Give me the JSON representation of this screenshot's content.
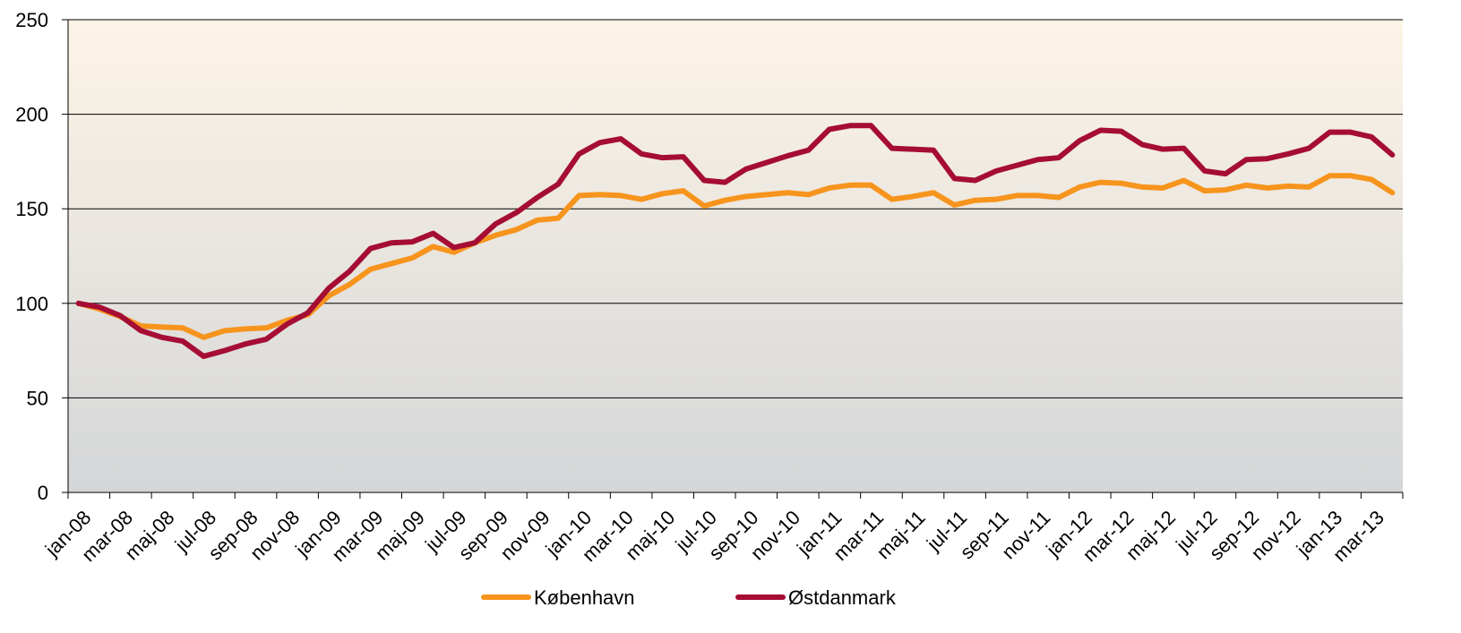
{
  "chart_data": {
    "type": "line",
    "categories": [
      "jan-08",
      null,
      "mar-08",
      null,
      "maj-08",
      null,
      "jul-08",
      null,
      "sep-08",
      null,
      "nov-08",
      null,
      "jan-09",
      null,
      "mar-09",
      null,
      "maj-09",
      null,
      "jul-09",
      null,
      "sep-09",
      null,
      "nov-09",
      null,
      "jan-10",
      null,
      "mar-10",
      null,
      "maj-10",
      null,
      "jul-10",
      null,
      "sep-10",
      null,
      "nov-10",
      null,
      "jan-11",
      null,
      "mar-11",
      null,
      "maj-11",
      null,
      "jul-11",
      null,
      "sep-11",
      null,
      "nov-11",
      null,
      "jan-12",
      null,
      "mar-12",
      null,
      "maj-12",
      null,
      "jul-12",
      null,
      "sep-12",
      null,
      "nov-12",
      null,
      "jan-13",
      null,
      "mar-13",
      null
    ],
    "series": [
      {
        "name": "København",
        "color": "#f7941d",
        "values": [
          100,
          97,
          93,
          88,
          87.5,
          87,
          82,
          85.5,
          86.5,
          87,
          91,
          94,
          104,
          110,
          118,
          121,
          124,
          130,
          127,
          132,
          136,
          139,
          144,
          145,
          157,
          157.5,
          157,
          155,
          158,
          159.5,
          151.5,
          154.5,
          156.5,
          157.5,
          158.5,
          157.5,
          161,
          162.5,
          162.5,
          155,
          156.5,
          158.5,
          152,
          154.5,
          155,
          157,
          157,
          156,
          161.5,
          164,
          163.5,
          161.5,
          161,
          165,
          159.5,
          160,
          162.5,
          161,
          162,
          161.5,
          167.5,
          167.5,
          165.5,
          158.5
        ]
      },
      {
        "name": "Østdanmark",
        "color": "#a50d35",
        "values": [
          100,
          98,
          93.5,
          85.5,
          82,
          80,
          72,
          75,
          78.5,
          81,
          89,
          95,
          108,
          117,
          129,
          132,
          132.5,
          137,
          129.5,
          132,
          142,
          148,
          156,
          163,
          179,
          185,
          187,
          179,
          177,
          177.5,
          165,
          164,
          171,
          174.5,
          178,
          181,
          192,
          194,
          194,
          182,
          181.5,
          181,
          166,
          165,
          170,
          173,
          176,
          177,
          186,
          191.5,
          191,
          184,
          181.5,
          182,
          170,
          168.5,
          176,
          176.5,
          179,
          182,
          190.5,
          190.5,
          188,
          178.5
        ]
      }
    ],
    "ylim": [
      0,
      250
    ],
    "yticks": [
      0,
      50,
      100,
      150,
      200,
      250
    ],
    "grid": true,
    "legend": "bottom"
  }
}
